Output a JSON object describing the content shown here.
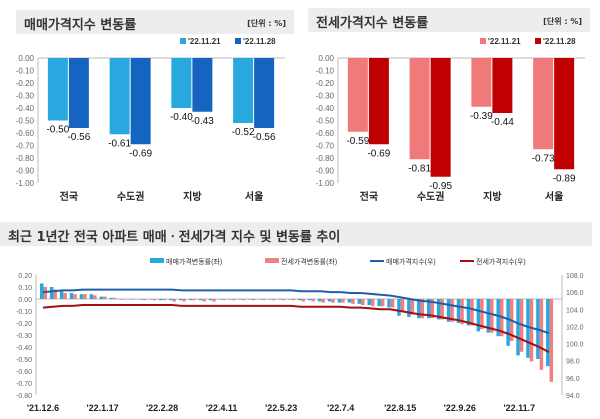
{
  "chart_data": [
    {
      "type": "bar",
      "title": "매매가격지수 변동률",
      "unit": "[단위 : %]",
      "categories": [
        "전국",
        "수도권",
        "지방",
        "서울"
      ],
      "series": [
        {
          "name": "'22.11.21",
          "values": [
            -0.5,
            -0.61,
            -0.4,
            -0.52
          ],
          "color": "#29a8e0"
        },
        {
          "name": "'22.11.28",
          "values": [
            -0.56,
            -0.69,
            -0.43,
            -0.56
          ],
          "color": "#1565c0"
        }
      ],
      "ylim": [
        -1.0,
        0.0
      ],
      "yticks": [
        "0.00",
        "-0.10",
        "-0.20",
        "-0.30",
        "-0.40",
        "-0.50",
        "-0.60",
        "-0.70",
        "-0.80",
        "-0.90",
        "-1.00"
      ],
      "grid": false,
      "legend": "top-right"
    },
    {
      "type": "bar",
      "title": "전세가격지수 변동률",
      "unit": "[단위 : %]",
      "categories": [
        "전국",
        "수도권",
        "지방",
        "서울"
      ],
      "series": [
        {
          "name": "'22.11.21",
          "values": [
            -0.59,
            -0.81,
            -0.39,
            -0.73
          ],
          "color": "#f07a7a"
        },
        {
          "name": "'22.11.28",
          "values": [
            -0.69,
            -0.95,
            -0.44,
            -0.89
          ],
          "color": "#c00000"
        }
      ],
      "ylim": [
        -1.0,
        0.0
      ],
      "yticks": [
        "0.00",
        "-0.10",
        "-0.20",
        "-0.30",
        "-0.40",
        "-0.50",
        "-0.60",
        "-0.70",
        "-0.80",
        "-0.90",
        "-1.00"
      ],
      "grid": false,
      "legend": "top-right"
    },
    {
      "type": "bar+line",
      "title": "최근 1년간 전국 아파트 매매ㆍ전세가격 지수 및 변동률 추이",
      "xticks": [
        "'21.12.6",
        "'22.1.17",
        "'22.2.28",
        "'22.4.11",
        "'22.5.23",
        "'22.7.4",
        "'22.8.15",
        "'22.9.26",
        "'22.11.7"
      ],
      "ylim_left": [
        -0.8,
        0.2
      ],
      "yticks_left": [
        "0.20",
        "0.10",
        "0.00",
        "-0.10",
        "-0.20",
        "-0.30",
        "-0.40",
        "-0.50",
        "-0.60",
        "-0.70",
        "-0.80"
      ],
      "ylim_right": [
        94.0,
        108.0
      ],
      "yticks_right": [
        "108.0",
        "106.0",
        "104.0",
        "102.0",
        "100.0",
        "98.0",
        "96.0",
        "94.0"
      ],
      "legend": "top",
      "series": [
        {
          "name": "매매가격변동률(좌)",
          "kind": "bar",
          "axis": "left",
          "color": "#29a8e0",
          "values": [
            0.13,
            0.1,
            0.07,
            0.05,
            0.04,
            0.04,
            0.02,
            0.01,
            0.0,
            0.0,
            0.0,
            0.0,
            -0.01,
            -0.01,
            -0.01,
            -0.01,
            -0.01,
            -0.01,
            0.0,
            0.0,
            0.0,
            0.0,
            0.0,
            0.0,
            0.0,
            0.0,
            -0.01,
            -0.01,
            -0.02,
            -0.02,
            -0.03,
            -0.03,
            -0.04,
            -0.05,
            -0.06,
            -0.07,
            -0.14,
            -0.15,
            -0.16,
            -0.16,
            -0.17,
            -0.19,
            -0.2,
            -0.22,
            -0.27,
            -0.28,
            -0.31,
            -0.39,
            -0.47,
            -0.49,
            -0.5,
            -0.56
          ]
        },
        {
          "name": "전세가격변동률(좌)",
          "kind": "bar",
          "axis": "left",
          "color": "#f08080",
          "values": [
            0.1,
            0.08,
            0.05,
            0.04,
            0.04,
            0.03,
            0.02,
            0.01,
            0.0,
            0.0,
            -0.01,
            -0.01,
            -0.01,
            -0.02,
            -0.02,
            -0.01,
            -0.02,
            -0.02,
            -0.01,
            -0.01,
            -0.01,
            -0.01,
            -0.01,
            -0.01,
            -0.01,
            -0.01,
            -0.02,
            -0.02,
            -0.03,
            -0.03,
            -0.03,
            -0.04,
            -0.05,
            -0.06,
            -0.06,
            -0.07,
            -0.1,
            -0.13,
            -0.16,
            -0.16,
            -0.17,
            -0.19,
            -0.21,
            -0.22,
            -0.25,
            -0.28,
            -0.31,
            -0.35,
            -0.44,
            -0.52,
            -0.59,
            -0.69
          ]
        },
        {
          "name": "매매가격지수(우)",
          "kind": "line",
          "axis": "right",
          "color": "#1f5fa8",
          "values": [
            106.0,
            106.1,
            106.2,
            106.2,
            106.3,
            106.3,
            106.3,
            106.3,
            106.3,
            106.3,
            106.3,
            106.3,
            106.3,
            106.3,
            106.2,
            106.2,
            106.2,
            106.2,
            106.2,
            106.2,
            106.2,
            106.2,
            106.2,
            106.2,
            106.2,
            106.2,
            106.1,
            106.1,
            106.1,
            106.0,
            106.0,
            105.9,
            105.9,
            105.8,
            105.7,
            105.6,
            105.4,
            105.2,
            105.0,
            104.9,
            104.7,
            104.5,
            104.3,
            104.1,
            103.8,
            103.5,
            103.2,
            102.8,
            102.3,
            101.9,
            101.6,
            101.2
          ]
        },
        {
          "name": "전세가격지수(우)",
          "kind": "line",
          "axis": "right",
          "color": "#a01010",
          "values": [
            104.2,
            104.3,
            104.4,
            104.4,
            104.5,
            104.5,
            104.5,
            104.5,
            104.5,
            104.5,
            104.5,
            104.5,
            104.5,
            104.5,
            104.4,
            104.4,
            104.4,
            104.4,
            104.4,
            104.4,
            104.4,
            104.4,
            104.4,
            104.4,
            104.4,
            104.4,
            104.3,
            104.3,
            104.3,
            104.3,
            104.3,
            104.2,
            104.2,
            104.1,
            104.0,
            104.0,
            103.8,
            103.6,
            103.4,
            103.3,
            103.1,
            102.9,
            102.7,
            102.4,
            102.1,
            101.8,
            101.5,
            101.1,
            100.6,
            100.1,
            99.6,
            99.0
          ]
        }
      ]
    }
  ]
}
